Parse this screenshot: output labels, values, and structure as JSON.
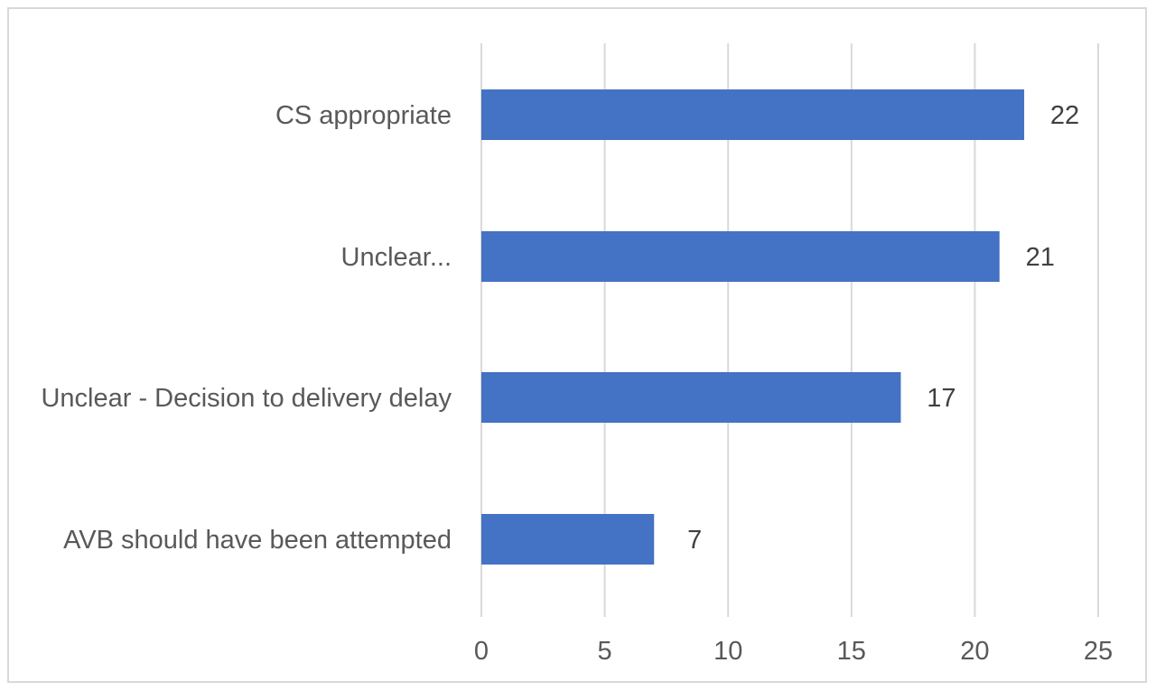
{
  "chart_data": {
    "type": "bar",
    "orientation": "horizontal",
    "categories": [
      "CS appropriate",
      "Unclear...",
      "Unclear - Decision to delivery delay",
      "AVB should have been attempted"
    ],
    "values": [
      22,
      21,
      17,
      7
    ],
    "xlim": [
      0,
      25
    ],
    "x_ticks": [
      0,
      5,
      10,
      15,
      20,
      25
    ],
    "grid": true,
    "legend": "none",
    "data_labels": true,
    "bar_color": "#4472C4",
    "title": "",
    "xlabel": "",
    "ylabel": ""
  }
}
